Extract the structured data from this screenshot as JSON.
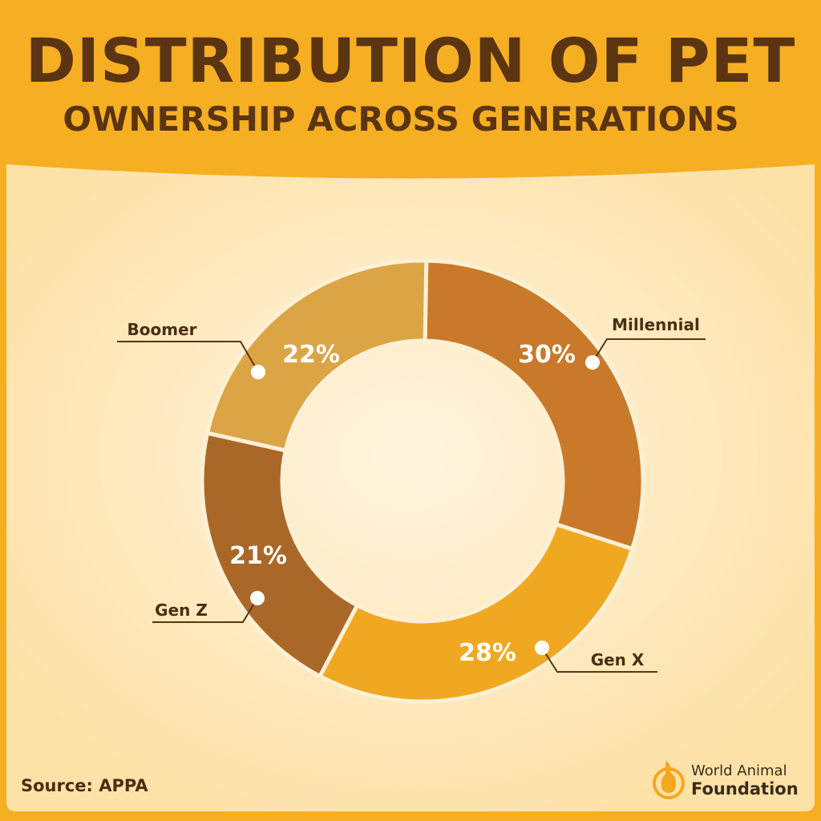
{
  "title_line1": "DISTRIBUTION OF PET",
  "title_line2": "OWNERSHIP ACROSS GENERATIONS",
  "source": "Source: APPA",
  "logo": {
    "line1": "World Animal",
    "line2": "Foundation"
  },
  "colors": {
    "band": "#F6AF22",
    "title": "#5B3411",
    "panel_center": "#FFF4DE",
    "panel_edge": "#FDE2A8"
  },
  "chart_data": {
    "type": "pie",
    "donut": true,
    "start": "top",
    "direction": "clockwise",
    "categories": [
      "Millennial",
      "Gen X",
      "Gen Z",
      "Boomer"
    ],
    "values": [
      30,
      28,
      21,
      22
    ],
    "data_labels": [
      "30%",
      "28%",
      "21%",
      "22%"
    ],
    "colors": [
      "#C87A2A",
      "#F0A820",
      "#A96828",
      "#DBA545"
    ],
    "legend": "callout-labels"
  }
}
